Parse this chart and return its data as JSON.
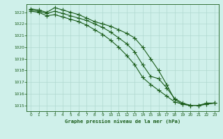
{
  "title": "Graphe pression niveau de la mer (hPa)",
  "background_color": "#cff0ea",
  "grid_color": "#b0d8d0",
  "line_color": "#1a5c1a",
  "marker_color": "#1a5c1a",
  "xlim": [
    -0.5,
    23.5
  ],
  "ylim": [
    1014.5,
    1023.7
  ],
  "yticks": [
    1015,
    1016,
    1017,
    1018,
    1019,
    1020,
    1021,
    1022,
    1023
  ],
  "xticks": [
    0,
    1,
    2,
    3,
    4,
    5,
    6,
    7,
    8,
    9,
    10,
    11,
    12,
    13,
    14,
    15,
    16,
    17,
    18,
    19,
    20,
    21,
    22,
    23
  ],
  "series1": {
    "x": [
      0,
      1,
      2,
      3,
      4,
      5,
      6,
      7,
      8,
      9,
      10,
      11,
      12,
      13,
      14,
      15,
      16,
      17,
      18,
      19,
      20,
      21,
      22,
      23
    ],
    "y": [
      1023.3,
      1023.2,
      1023.0,
      1023.4,
      1023.2,
      1023.0,
      1022.8,
      1022.5,
      1022.2,
      1022.0,
      1021.8,
      1021.5,
      1021.2,
      1020.8,
      1020.0,
      1019.0,
      1018.0,
      1016.8,
      1015.5,
      1015.1,
      1015.0,
      1015.0,
      1015.2,
      1015.2
    ]
  },
  "series2": {
    "x": [
      0,
      1,
      2,
      3,
      4,
      5,
      6,
      7,
      8,
      9,
      10,
      11,
      12,
      13,
      14,
      15,
      16,
      17,
      18,
      19,
      20,
      21,
      22,
      23
    ],
    "y": [
      1023.2,
      1023.1,
      1022.9,
      1023.1,
      1022.9,
      1022.7,
      1022.5,
      1022.3,
      1022.0,
      1021.7,
      1021.3,
      1020.8,
      1020.3,
      1019.6,
      1018.5,
      1017.5,
      1017.3,
      1016.5,
      1015.6,
      1015.2,
      1015.0,
      1015.0,
      1015.1,
      1015.2
    ]
  },
  "series3": {
    "x": [
      0,
      1,
      2,
      3,
      4,
      5,
      6,
      7,
      8,
      9,
      10,
      11,
      12,
      13,
      14,
      15,
      16,
      17,
      18,
      19,
      20,
      21,
      22,
      23
    ],
    "y": [
      1023.1,
      1023.0,
      1022.7,
      1022.8,
      1022.6,
      1022.4,
      1022.2,
      1021.9,
      1021.5,
      1021.1,
      1020.6,
      1020.0,
      1019.3,
      1018.5,
      1017.4,
      1016.8,
      1016.3,
      1015.8,
      1015.3,
      1015.1,
      1015.0,
      1015.0,
      1015.1,
      1015.2
    ]
  }
}
